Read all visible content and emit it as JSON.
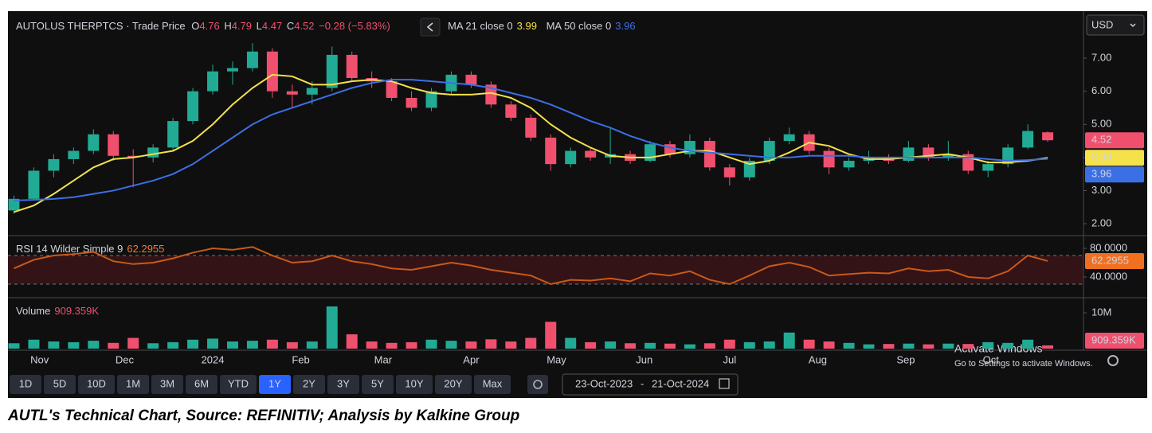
{
  "header": {
    "instrument": "AUTOLUS THERPTCS · Trade Price",
    "ohlc_labels": [
      "O",
      "H",
      "L",
      "C"
    ],
    "change": "−0.28 (−5.83%)",
    "currency": "USD"
  },
  "chart_data": [
    {
      "type": "candlestick",
      "open": [
        2.4,
        2.75,
        3.6,
        3.95,
        4.2,
        4.7,
        4.05,
        4.0,
        4.3,
        5.1,
        6.0,
        6.6,
        6.7,
        7.2,
        6.0,
        5.9,
        6.1,
        7.1,
        6.4,
        6.3,
        5.8,
        5.5,
        6.0,
        6.5,
        6.2,
        5.6,
        5.2,
        4.6,
        3.8,
        4.2,
        4.0,
        4.1,
        3.9,
        4.4,
        4.1,
        4.5,
        3.7,
        3.4,
        3.9,
        4.5,
        4.7,
        4.2,
        3.7,
        3.9,
        4.0,
        3.9,
        4.3,
        4.0,
        4.1,
        3.6,
        3.8,
        4.3,
        4.76
      ],
      "high": [
        2.85,
        3.7,
        4.1,
        4.3,
        4.85,
        4.8,
        4.25,
        4.4,
        5.2,
        6.1,
        6.8,
        6.9,
        7.45,
        7.3,
        6.2,
        6.3,
        7.35,
        7.2,
        6.6,
        6.4,
        6.0,
        6.1,
        6.6,
        6.6,
        6.3,
        5.7,
        5.3,
        4.7,
        4.3,
        4.3,
        4.9,
        4.2,
        4.5,
        4.5,
        4.7,
        4.6,
        3.8,
        4.0,
        4.6,
        4.9,
        4.8,
        4.3,
        4.0,
        4.2,
        4.1,
        4.5,
        4.4,
        4.5,
        4.2,
        3.9,
        4.4,
        5.0,
        4.79
      ],
      "low": [
        2.3,
        2.7,
        3.4,
        3.8,
        4.1,
        3.9,
        3.1,
        3.85,
        4.2,
        5.0,
        5.9,
        6.2,
        6.6,
        5.8,
        5.5,
        5.6,
        6.0,
        6.3,
        6.1,
        5.7,
        5.4,
        5.4,
        5.9,
        6.1,
        5.5,
        5.1,
        4.5,
        3.6,
        3.7,
        3.9,
        3.8,
        3.8,
        3.85,
        4.0,
        4.0,
        3.6,
        3.15,
        3.3,
        3.8,
        4.4,
        4.1,
        3.5,
        3.6,
        3.8,
        3.8,
        3.85,
        3.9,
        3.9,
        3.5,
        3.4,
        3.7,
        4.25,
        4.47
      ],
      "close": [
        2.75,
        3.6,
        3.95,
        4.2,
        4.7,
        4.05,
        4.0,
        4.3,
        5.1,
        6.0,
        6.6,
        6.7,
        7.2,
        6.0,
        5.9,
        6.1,
        7.1,
        6.4,
        6.3,
        5.8,
        5.5,
        6.0,
        6.5,
        6.2,
        5.6,
        5.2,
        4.6,
        3.8,
        4.2,
        4.0,
        4.1,
        3.9,
        4.4,
        4.1,
        4.5,
        3.7,
        3.4,
        3.9,
        4.5,
        4.7,
        4.2,
        3.7,
        3.9,
        4.0,
        3.9,
        4.3,
        4.0,
        4.1,
        3.6,
        3.8,
        4.3,
        4.8,
        4.52
      ],
      "up_color": "#22ab94",
      "down_color": "#f0506e",
      "series": [
        {
          "name": "MA 21 close 0",
          "color": "#f5e14a",
          "values": [
            2.35,
            2.55,
            2.9,
            3.3,
            3.7,
            3.95,
            4.0,
            4.1,
            4.2,
            4.5,
            5.0,
            5.6,
            6.1,
            6.5,
            6.45,
            6.2,
            6.2,
            6.3,
            6.35,
            6.3,
            6.1,
            5.95,
            5.9,
            5.9,
            5.95,
            5.8,
            5.5,
            5.0,
            4.6,
            4.3,
            4.05,
            4.0,
            4.0,
            4.1,
            4.2,
            4.2,
            4.0,
            3.8,
            3.9,
            4.15,
            4.45,
            4.35,
            4.1,
            3.95,
            3.95,
            4.0,
            4.05,
            4.1,
            4.0,
            3.85,
            3.85,
            3.9,
            3.99
          ]
        },
        {
          "name": "MA 50 close 0",
          "color": "#3b6fe6",
          "values": [
            2.7,
            2.72,
            2.75,
            2.8,
            2.9,
            3.0,
            3.15,
            3.3,
            3.5,
            3.8,
            4.2,
            4.6,
            5.0,
            5.3,
            5.5,
            5.7,
            5.9,
            6.1,
            6.25,
            6.35,
            6.35,
            6.3,
            6.25,
            6.2,
            6.1,
            5.95,
            5.8,
            5.6,
            5.35,
            5.1,
            4.9,
            4.65,
            4.45,
            4.3,
            4.2,
            4.15,
            4.1,
            4.05,
            4.0,
            4.0,
            4.05,
            4.05,
            4.05,
            4.0,
            4.0,
            4.0,
            4.0,
            4.0,
            4.0,
            3.95,
            3.9,
            3.92,
            3.96
          ]
        }
      ],
      "ylim": [
        1.64,
        8.42
      ],
      "yticks": [
        {
          "value": 2,
          "label": "2.00"
        },
        {
          "value": 3,
          "label": "3.00"
        },
        {
          "value": 4,
          "label": "4.00"
        },
        {
          "value": 5,
          "label": "5.00"
        },
        {
          "value": 6,
          "label": "6.00"
        },
        {
          "value": 7,
          "label": "7.00"
        }
      ],
      "xlim": [
        -0.3,
        53.8
      ],
      "xticks": [
        {
          "value": 1.29,
          "label": "Nov"
        },
        {
          "value": 5.57,
          "label": "Dec"
        },
        {
          "value": 10.0,
          "label": "2024"
        },
        {
          "value": 14.43,
          "label": "Feb"
        },
        {
          "value": 18.57,
          "label": "Mar"
        },
        {
          "value": 23.0,
          "label": "Apr"
        },
        {
          "value": 27.29,
          "label": "May"
        },
        {
          "value": 31.71,
          "label": "Jun"
        },
        {
          "value": 36.0,
          "label": "Jul"
        },
        {
          "value": 40.43,
          "label": "Aug"
        },
        {
          "value": 44.86,
          "label": "Sep"
        },
        {
          "value": 49.14,
          "label": "Oct"
        }
      ]
    },
    {
      "type": "line",
      "title": "RSI 14 Wilder Simple 9",
      "series": [
        {
          "name": "RSI",
          "color": "#c95a18",
          "values": [
            52,
            64,
            70,
            72,
            75,
            62,
            58,
            60,
            66,
            74,
            80,
            78,
            82,
            70,
            60,
            62,
            70,
            62,
            58,
            52,
            50,
            55,
            60,
            56,
            50,
            46,
            42,
            30,
            36,
            35,
            38,
            34,
            45,
            42,
            48,
            36,
            30,
            42,
            55,
            60,
            54,
            42,
            44,
            46,
            45,
            52,
            48,
            50,
            40,
            38,
            48,
            70,
            62.2955
          ]
        }
      ],
      "band": [
        30,
        70
      ],
      "ylim": [
        12.2,
        96.7
      ],
      "yticks": [
        {
          "value": 40,
          "label": "40.0000"
        },
        {
          "value": 80,
          "label": "80.0000"
        }
      ]
    },
    {
      "type": "bar",
      "title": "Volume",
      "values": [
        1500000,
        2500000,
        2000000,
        1800000,
        2200000,
        1600000,
        3000000,
        1500000,
        1800000,
        2500000,
        2800000,
        2000000,
        2200000,
        2500000,
        1800000,
        2000000,
        11800000,
        4000000,
        2000000,
        1600000,
        1800000,
        2500000,
        2200000,
        2000000,
        2600000,
        2000000,
        3000000,
        7500000,
        3000000,
        1800000,
        2000000,
        1500000,
        1600000,
        1400000,
        1200000,
        1500000,
        2500000,
        1800000,
        2000000,
        4500000,
        2500000,
        2000000,
        1600000,
        1200000,
        1300000,
        1400000,
        1200000,
        1400000,
        1300000,
        1800000,
        1600000,
        2500000,
        909359
      ],
      "last_label": "909.359K",
      "ylim": [
        0,
        13800000
      ],
      "yticks": [
        {
          "value": 10000000,
          "label": "10M"
        }
      ]
    }
  ],
  "toolbar": {
    "ranges": [
      "1D",
      "5D",
      "10D",
      "1M",
      "3M",
      "6M",
      "YTD",
      "1Y",
      "2Y",
      "3Y",
      "5Y",
      "10Y",
      "20Y",
      "Max"
    ],
    "active": "1Y",
    "from": "23-Oct-2023",
    "separator": "-",
    "to": "21-Oct-2024"
  },
  "watermark": {
    "title": "Activate Windows",
    "text": "Go to Settings to activate Windows."
  },
  "caption": "AUTL's Technical Chart, Source: REFINITIV; Analysis by Kalkine Group"
}
